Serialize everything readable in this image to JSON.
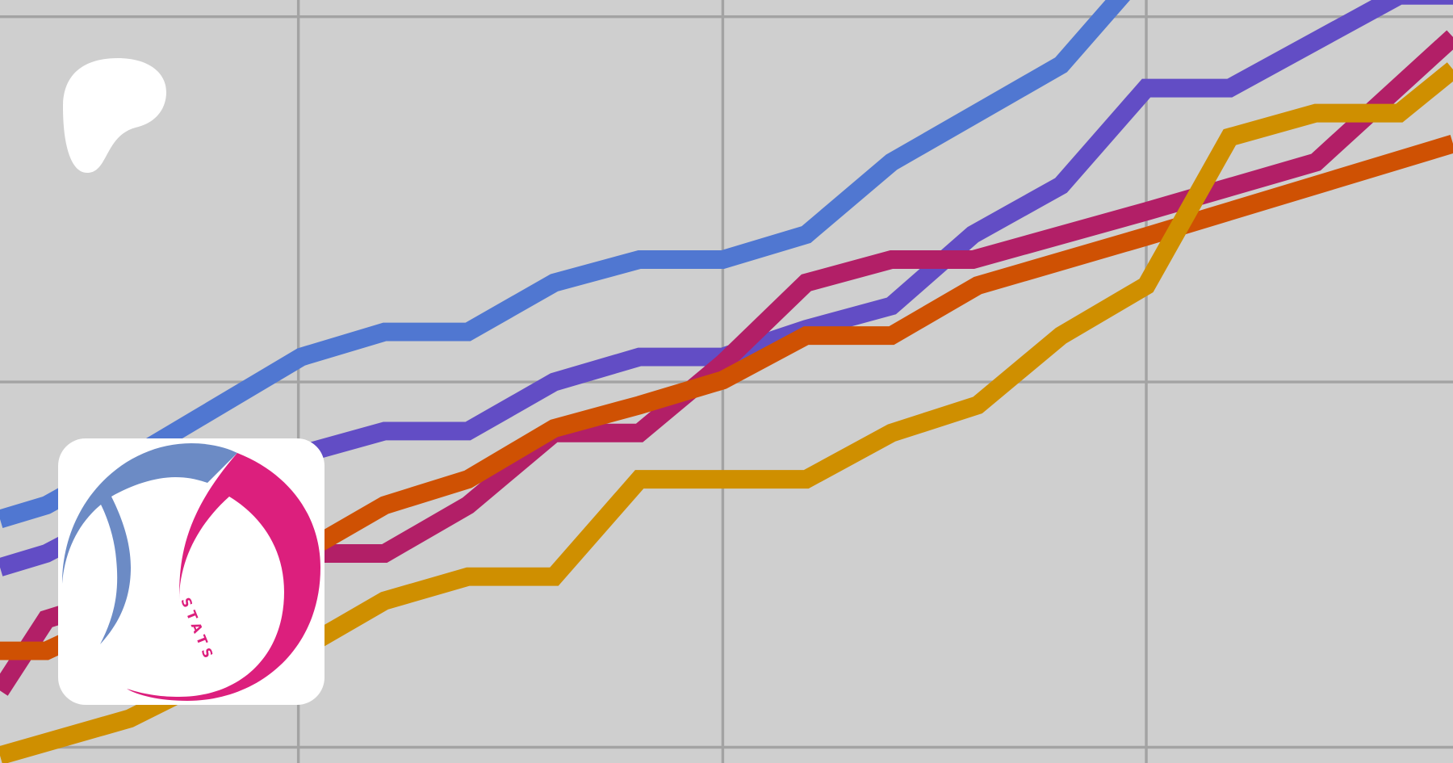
{
  "brand": {
    "logo": "patreon-logo",
    "logo_color": "#ffffff"
  },
  "stats_logo": {
    "text": "STATS",
    "blue": "#6c8bc5",
    "pink": "#dc1f7d"
  },
  "background": {
    "color": "#cfcfcf",
    "grid_color": "#a3a3a3"
  },
  "series_colors": [
    "#5077d1",
    "#624dc5",
    "#b21f67",
    "#cf5103",
    "#cf8f00"
  ]
}
